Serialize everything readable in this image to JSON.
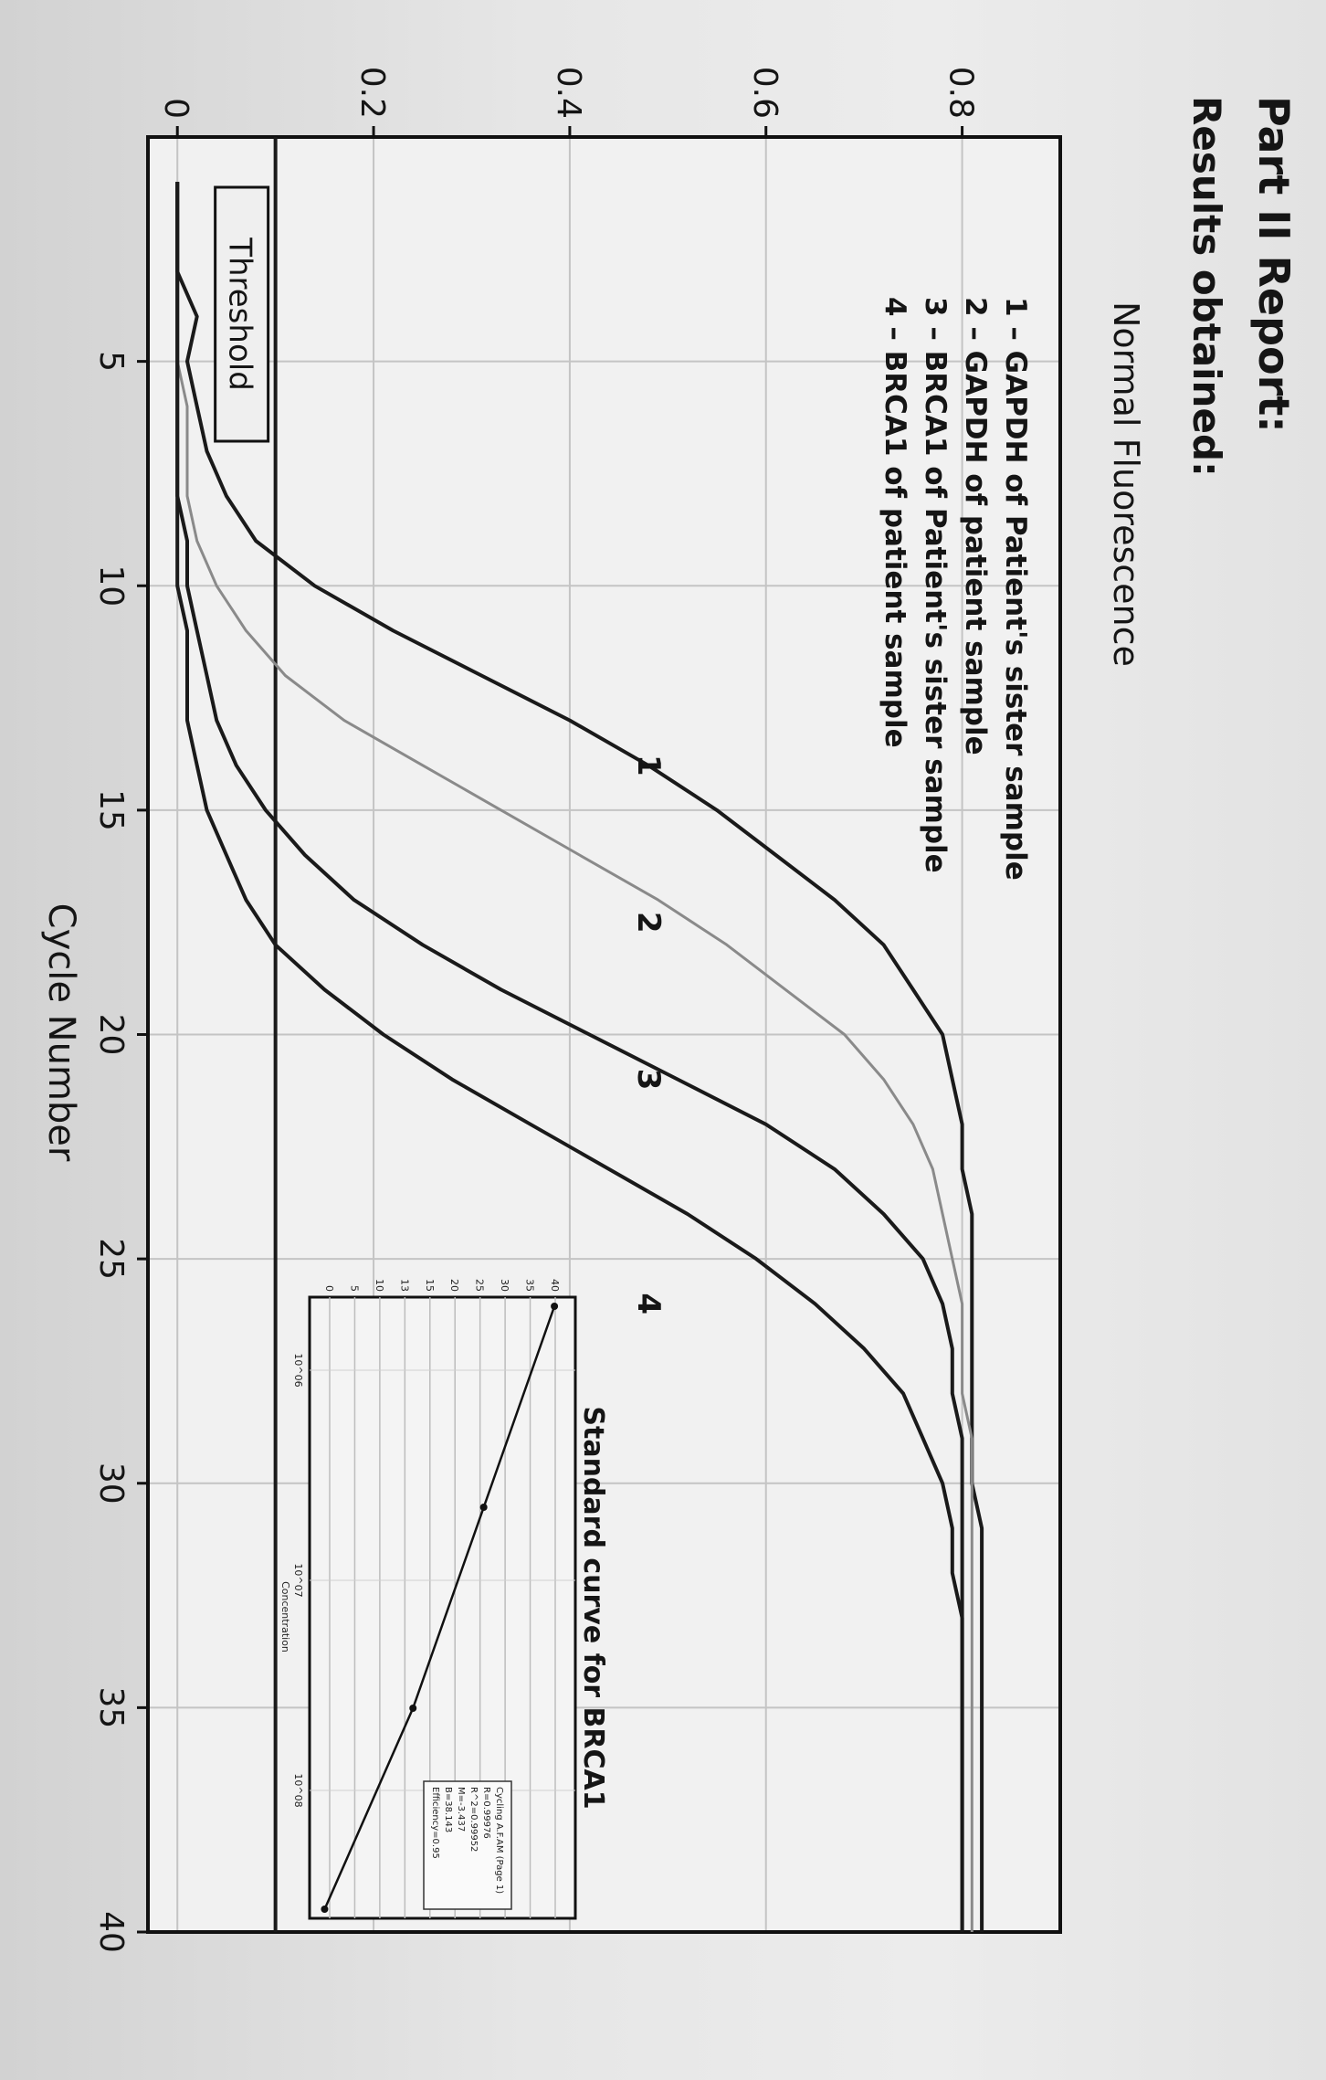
{
  "header": {
    "part_title": "Part II Report:",
    "results_title": "Results obtained:"
  },
  "colors": {
    "curve_1": "#1a1a1a",
    "curve_2": "#8a8a8a",
    "curve_3": "#1a1a1a",
    "curve_4": "#1a1a1a",
    "threshold": "#1a1a1a",
    "grid": "#c4c4c4"
  },
  "chart_data": [
    {
      "type": "line",
      "title": "",
      "xlabel": "Cycle Number",
      "ylabel": "Normal Fluorescence",
      "xlim": [
        0,
        40
      ],
      "ylim": [
        -0.03,
        0.9
      ],
      "x_ticks": [
        5,
        10,
        15,
        20,
        25,
        30,
        35,
        40
      ],
      "y_ticks": [
        0,
        0.2,
        0.4,
        0.6,
        0.8
      ],
      "y_tick_labels": [
        "0",
        "0.2",
        "0.4",
        "0.6",
        "0.8"
      ],
      "grid": true,
      "legend_position": "top-left",
      "legend": [
        "1 – GAPDH of Patient's sister sample",
        "2 – GAPDH of patient sample",
        "3 – BRCA1 of Patient's sister sample",
        "4 – BRCA1 of patient sample"
      ],
      "threshold": {
        "label": "Threshold",
        "value": 0.1
      },
      "x": [
        1,
        2,
        3,
        4,
        5,
        6,
        7,
        8,
        9,
        10,
        11,
        12,
        13,
        14,
        15,
        16,
        17,
        18,
        19,
        20,
        21,
        22,
        23,
        24,
        25,
        26,
        27,
        28,
        29,
        30,
        31,
        32,
        33,
        34,
        35,
        36,
        37,
        38,
        39,
        40
      ],
      "series": [
        {
          "name": "1",
          "values": [
            0.0,
            0.0,
            0.0,
            0.02,
            0.01,
            0.02,
            0.03,
            0.05,
            0.08,
            0.14,
            0.22,
            0.31,
            0.4,
            0.48,
            0.55,
            0.61,
            0.67,
            0.72,
            0.75,
            0.78,
            0.79,
            0.8,
            0.8,
            0.81,
            0.81,
            0.81,
            0.81,
            0.81,
            0.81,
            0.81,
            0.82,
            0.82,
            0.82,
            0.82,
            0.82,
            0.82,
            0.82,
            0.82,
            0.82,
            0.82
          ]
        },
        {
          "name": "2",
          "values": [
            0.0,
            0.0,
            0.0,
            0.0,
            0.0,
            0.01,
            0.01,
            0.01,
            0.02,
            0.04,
            0.07,
            0.11,
            0.17,
            0.25,
            0.33,
            0.41,
            0.49,
            0.56,
            0.62,
            0.68,
            0.72,
            0.75,
            0.77,
            0.78,
            0.79,
            0.8,
            0.8,
            0.8,
            0.81,
            0.81,
            0.81,
            0.81,
            0.81,
            0.81,
            0.81,
            0.81,
            0.81,
            0.81,
            0.81,
            0.81
          ]
        },
        {
          "name": "3",
          "values": [
            0.0,
            0.0,
            0.0,
            0.0,
            0.0,
            0.0,
            0.0,
            0.0,
            0.01,
            0.01,
            0.02,
            0.03,
            0.04,
            0.06,
            0.09,
            0.13,
            0.18,
            0.25,
            0.33,
            0.42,
            0.51,
            0.6,
            0.67,
            0.72,
            0.76,
            0.78,
            0.79,
            0.79,
            0.8,
            0.8,
            0.8,
            0.8,
            0.8,
            0.8,
            0.8,
            0.8,
            0.8,
            0.8,
            0.8,
            0.8
          ]
        },
        {
          "name": "4",
          "values": [
            0.0,
            0.0,
            0.0,
            0.0,
            0.0,
            0.0,
            0.0,
            0.0,
            0.0,
            0.0,
            0.01,
            0.01,
            0.01,
            0.02,
            0.03,
            0.05,
            0.07,
            0.1,
            0.15,
            0.21,
            0.28,
            0.36,
            0.44,
            0.52,
            0.59,
            0.65,
            0.7,
            0.74,
            0.76,
            0.78,
            0.79,
            0.79,
            0.8,
            0.8,
            0.8,
            0.8,
            0.8,
            0.8,
            0.8,
            0.8
          ]
        }
      ],
      "curve_labels": [
        {
          "text": "1",
          "x": 14,
          "y": 0.47
        },
        {
          "text": "2",
          "x": 17.5,
          "y": 0.47
        },
        {
          "text": "3",
          "x": 21,
          "y": 0.47
        },
        {
          "text": "4",
          "x": 26,
          "y": 0.47
        }
      ]
    },
    {
      "type": "line",
      "title": "Standard curve for BRCA1",
      "xlabel": "Concentration",
      "x_scale": "log",
      "x_ticks": [
        "10^06",
        "10^07",
        "10^08"
      ],
      "y_ticks": [
        "40",
        "35",
        "30",
        "25",
        "20",
        "15",
        "13",
        "10",
        "5",
        "0"
      ],
      "x": [
        1,
        2,
        3,
        4
      ],
      "values": [
        4.0,
        2.8,
        1.6,
        0.1
      ],
      "legend_lines": [
        "Cycling A.F.AM (Page 1)",
        "R=0.99976",
        "R^2=0.99952",
        "M=-3.437",
        "B=38.143",
        "Efficiency=0.95"
      ]
    }
  ]
}
